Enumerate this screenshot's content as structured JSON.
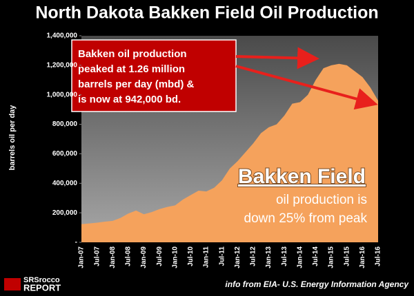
{
  "chart_data": {
    "type": "area",
    "title": "North Dakota Bakken Field Oil Production",
    "y_axis_label": "barrels oil per day",
    "categories": [
      "Jan-07",
      null,
      "Jul-07",
      null,
      "Jan-08",
      null,
      "Jul-08",
      null,
      "Jan-09",
      null,
      "Jul-09",
      null,
      "Jan-10",
      null,
      "Jul-10",
      null,
      "Jan-11",
      null,
      "Jul-11",
      null,
      "Jan-12",
      null,
      "Jul-12",
      null,
      "Jan-13",
      null,
      "Jul-13",
      null,
      "Jan-14",
      null,
      "Jul-14",
      null,
      "Jan-15",
      null,
      "Jul-15",
      null,
      "Jan-16",
      null,
      "Jul-16"
    ],
    "series": [
      {
        "color": "#f5a25c",
        "values": [
          123000,
          128000,
          133000,
          140000,
          145000,
          165000,
          195000,
          215000,
          190000,
          205000,
          225000,
          240000,
          250000,
          290000,
          320000,
          350000,
          345000,
          370000,
          420000,
          500000,
          550000,
          610000,
          670000,
          740000,
          780000,
          800000,
          860000,
          940000,
          950000,
          1000000,
          1100000,
          1180000,
          1200000,
          1210000,
          1200000,
          1160000,
          1120000,
          1050000,
          960000
        ]
      }
    ],
    "ylim": [
      0,
      1400000
    ],
    "yticks": [
      {
        "value": 0,
        "label": "-"
      },
      {
        "value": 200000,
        "label": "200,000"
      },
      {
        "value": 400000,
        "label": "400,000"
      },
      {
        "value": 600000,
        "label": "600,000"
      },
      {
        "value": 800000,
        "label": "800,000"
      },
      {
        "value": 1000000,
        "label": "1,000,000"
      },
      {
        "value": 1200000,
        "label": "1,200,000"
      },
      {
        "value": 1400000,
        "label": "1,400,000"
      }
    ],
    "annotations": {
      "callout": [
        "Bakken oil production",
        "peaked at 1.26 million",
        "barrels per day (mbd) &",
        "is now at 942,000 bd."
      ],
      "highlight_title": "Bakken Field",
      "highlight_lines": [
        "oil production is",
        "down 25% from peak"
      ]
    },
    "source": "info from EIA- U.S. Energy Information Agency",
    "logo": [
      "SRSrocco",
      "REPORT"
    ]
  }
}
